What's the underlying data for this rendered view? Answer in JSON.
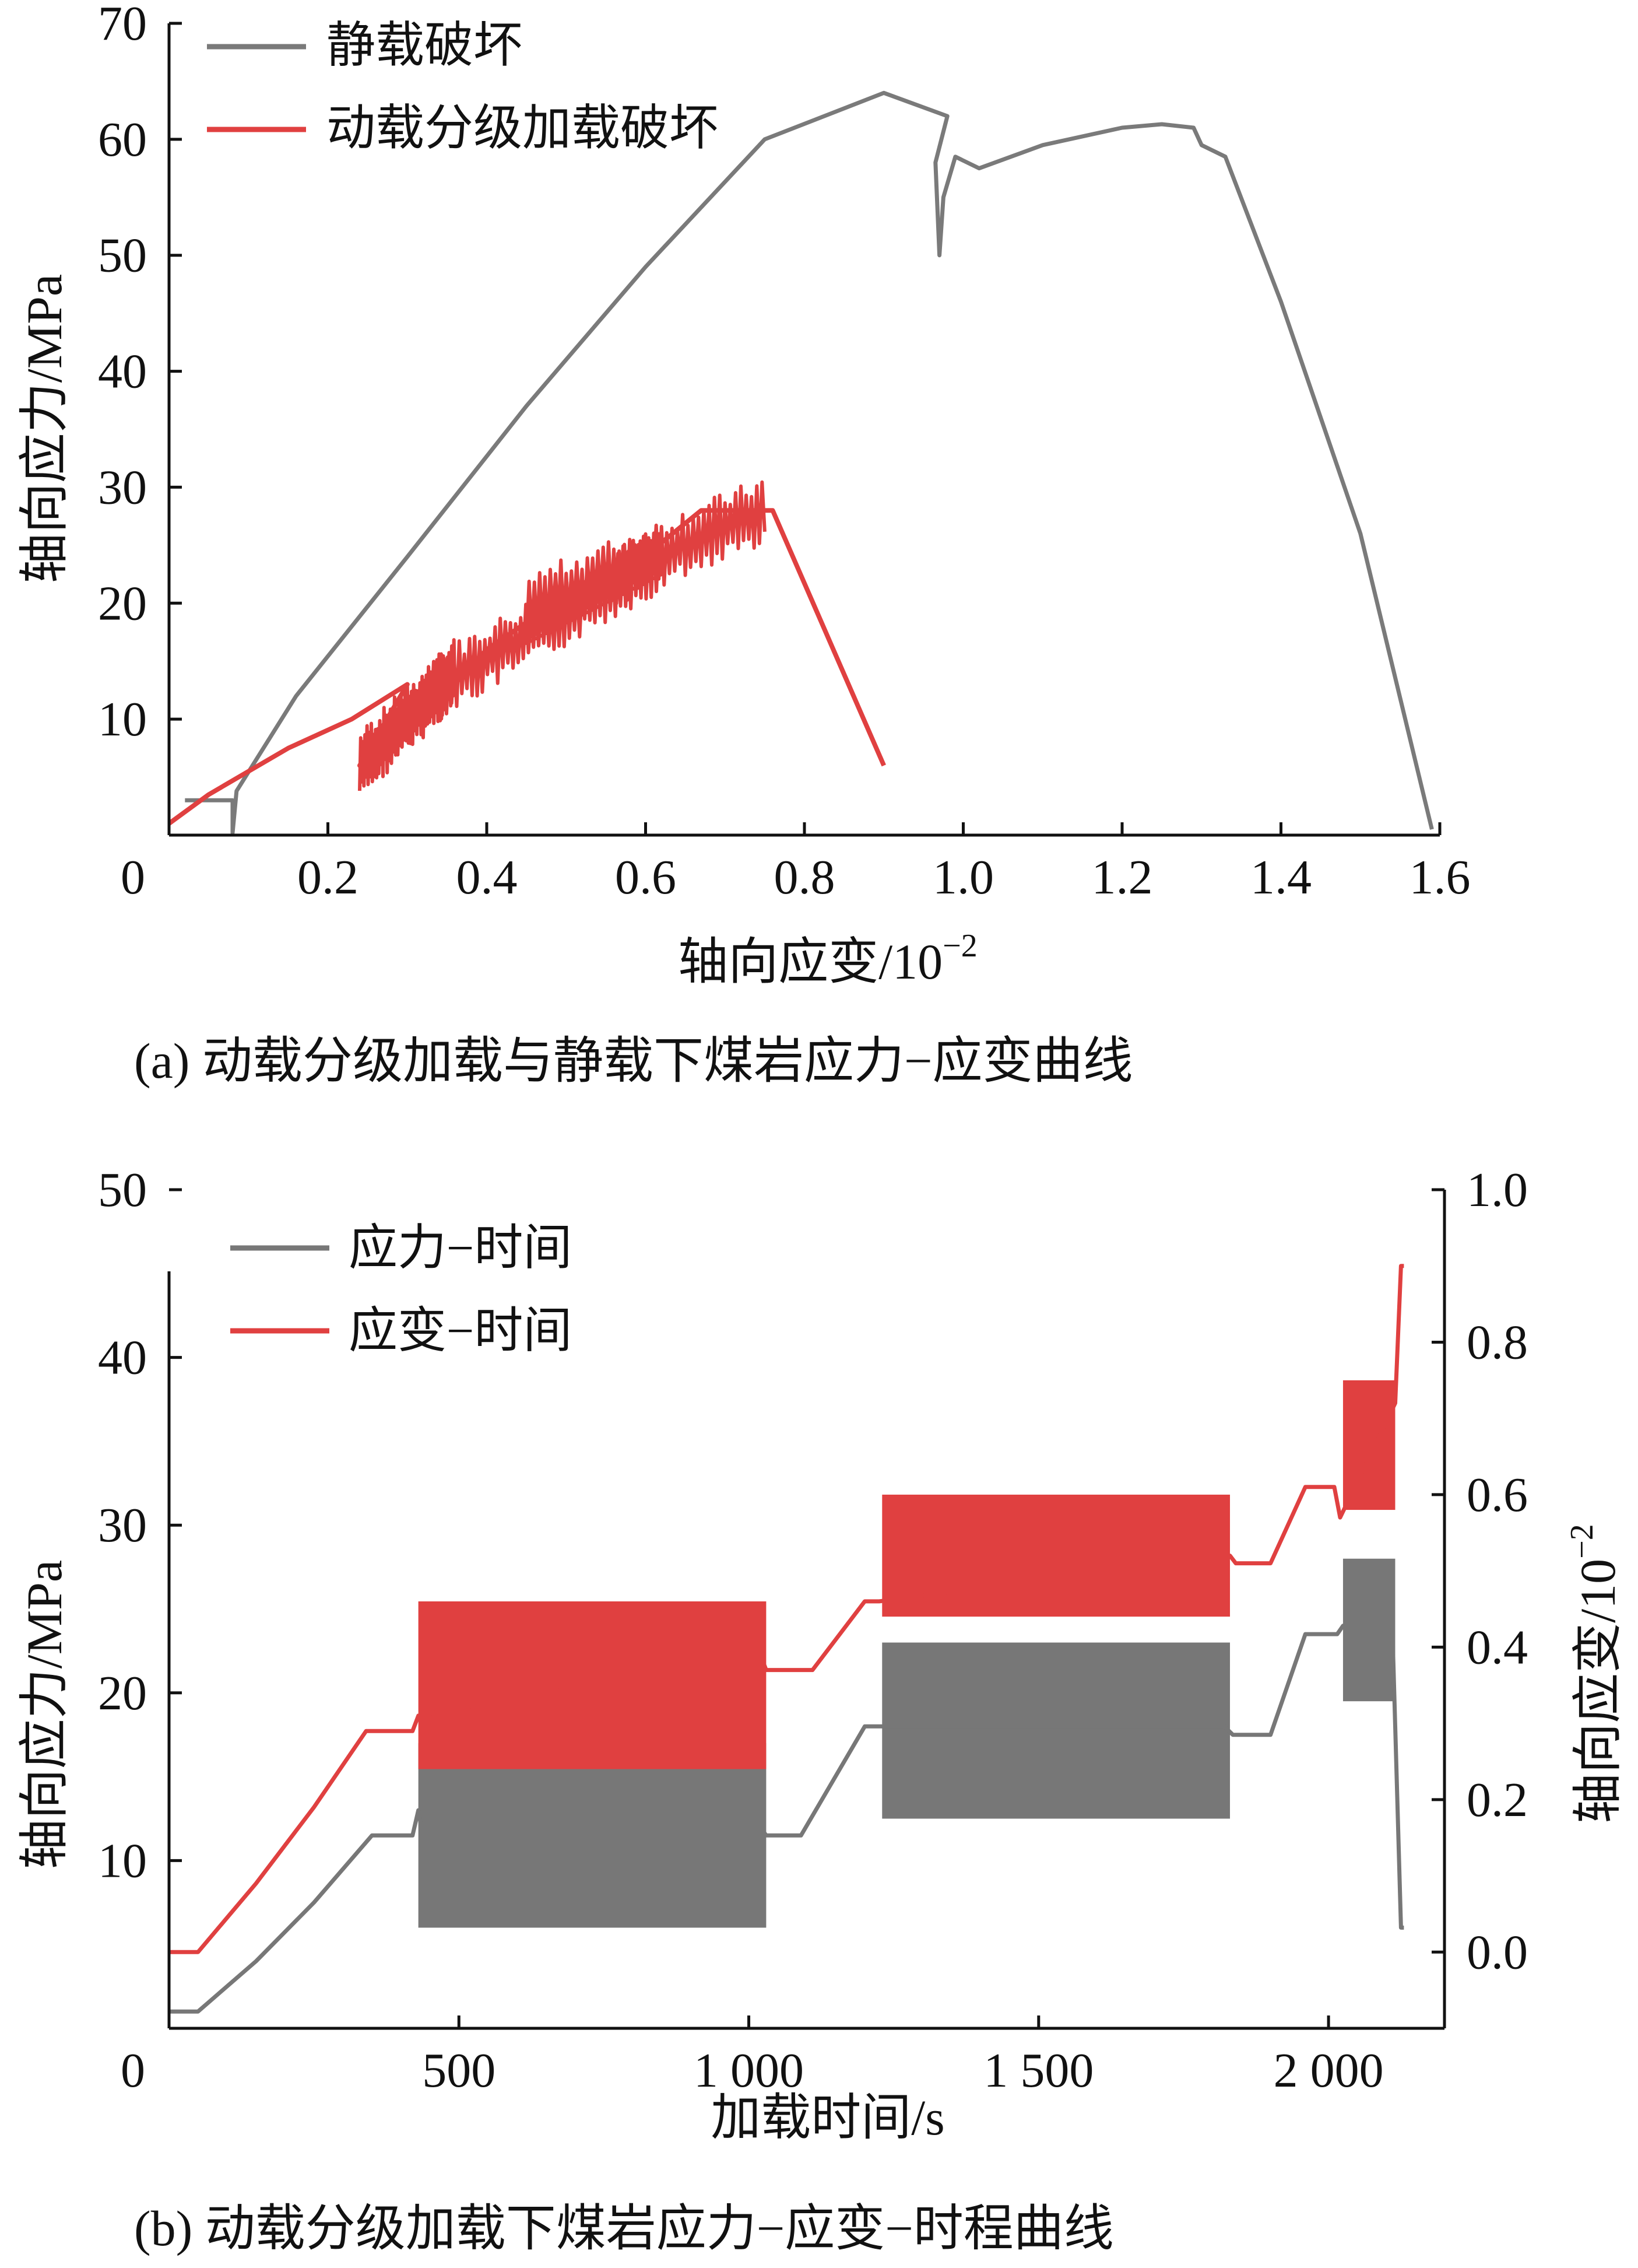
{
  "chart_data": [
    {
      "type": "line",
      "caption": "(a)  动载分级加载与静载下煤岩应力−应变曲线",
      "xlabel_main": "轴向应变/10",
      "xlabel_sup": "−2",
      "ylabel": "轴向应力/MPa",
      "xlim": [
        0,
        1.6
      ],
      "ylim": [
        0,
        70
      ],
      "xticks": [
        {
          "v": 0,
          "label": "0"
        },
        {
          "v": 0.2,
          "label": "0.2"
        },
        {
          "v": 0.4,
          "label": "0.4"
        },
        {
          "v": 0.6,
          "label": "0.6"
        },
        {
          "v": 0.8,
          "label": "0.8"
        },
        {
          "v": 1.0,
          "label": "1.0"
        },
        {
          "v": 1.2,
          "label": "1.2"
        },
        {
          "v": 1.4,
          "label": "1.4"
        },
        {
          "v": 1.6,
          "label": "1.6"
        }
      ],
      "yticks": [
        {
          "v": 10,
          "label": "10"
        },
        {
          "v": 20,
          "label": "20"
        },
        {
          "v": 30,
          "label": "30"
        },
        {
          "v": 40,
          "label": "40"
        },
        {
          "v": 50,
          "label": "50"
        },
        {
          "v": 60,
          "label": "60"
        },
        {
          "v": 70,
          "label": "70"
        }
      ],
      "legend": {
        "placement": "top-left"
      },
      "series": [
        {
          "name": "静载破坏",
          "color": "#7a7a7a",
          "x": [
            0.02,
            0.08,
            0.08,
            0.085,
            0.16,
            0.3,
            0.45,
            0.6,
            0.75,
            0.9,
            0.98,
            0.965,
            0.97,
            0.975,
            0.99,
            1.02,
            1.1,
            1.2,
            1.25,
            1.29,
            1.3,
            1.33,
            1.4,
            1.5,
            1.59
          ],
          "y": [
            3,
            3,
            0.2,
            3.8,
            12,
            24,
            37,
            49,
            60,
            64,
            62,
            58,
            50,
            55,
            58.5,
            57.5,
            59.5,
            61,
            61.3,
            61,
            59.5,
            58.5,
            46,
            26,
            0.5
          ]
        },
        {
          "name": "动载分级加载破坏",
          "color": "#e04040",
          "x": [
            0.0,
            0.05,
            0.15,
            0.23,
            0.3,
            0.24,
            0.36,
            0.29,
            0.4,
            0.55,
            0.62,
            0.49,
            0.67,
            0.76,
            0.9
          ],
          "y": [
            1,
            3.5,
            7.5,
            10,
            13,
            6,
            14,
            8,
            16,
            23,
            24,
            18,
            28,
            28,
            6
          ]
        }
      ]
    },
    {
      "type": "line",
      "caption": "(b)  动载分级加载下煤岩应力−应变−时程曲线",
      "xlabel": "加载时间/s",
      "ylabel_left": "轴向应力/MPa",
      "ylabel_right_main": "轴向应变/10",
      "ylabel_right_sup": "−2",
      "xlim": [
        0,
        2200
      ],
      "ylim_left": [
        0,
        50
      ],
      "ylim_right": [
        -0.1,
        1.0
      ],
      "xticks": [
        {
          "v": 0,
          "label": "0"
        },
        {
          "v": 500,
          "label": "500"
        },
        {
          "v": 1000,
          "label": "1 000"
        },
        {
          "v": 1500,
          "label": "1 500"
        },
        {
          "v": 2000,
          "label": "2 000"
        }
      ],
      "yticks_left": [
        {
          "v": 10,
          "label": "10"
        },
        {
          "v": 20,
          "label": "20"
        },
        {
          "v": 30,
          "label": "30"
        },
        {
          "v": 40,
          "label": "40"
        },
        {
          "v": 50,
          "label": "50"
        }
      ],
      "yticks_right": [
        {
          "v": 0.0,
          "label": "0.0"
        },
        {
          "v": 0.2,
          "label": "0.2"
        },
        {
          "v": 0.4,
          "label": "0.4"
        },
        {
          "v": 0.6,
          "label": "0.6"
        },
        {
          "v": 0.8,
          "label": "0.8"
        },
        {
          "v": 1.0,
          "label": "1.0"
        }
      ],
      "legend": {
        "placement": "top-left"
      },
      "series": [
        {
          "name": "应力−时间",
          "color": "#777777",
          "axis": "left",
          "t": [
            0,
            50,
            150,
            250,
            350,
            420,
            430,
            435,
            1020,
            1030,
            1090,
            1200,
            1230,
            1820,
            1835,
            1900,
            1960,
            2015,
            2025,
            2110,
            2115,
            2125,
            2130
          ],
          "v": [
            1,
            1,
            4,
            7.5,
            11.5,
            11.5,
            13,
            12,
            12,
            11.5,
            11.5,
            18,
            18,
            18,
            17.5,
            17.5,
            23.5,
            23.5,
            24,
            24,
            18,
            6,
            6
          ],
          "bands": [
            {
              "t0": 430,
              "t1": 1030,
              "min": 6,
              "max": 17
            },
            {
              "t0": 1230,
              "t1": 1830,
              "min": 12.5,
              "max": 23
            },
            {
              "t0": 2025,
              "t1": 2115,
              "min": 19.5,
              "max": 28
            }
          ]
        },
        {
          "name": "应变−时间",
          "color": "#e04040",
          "axis": "right",
          "t": [
            0,
            50,
            150,
            250,
            340,
            420,
            430,
            1020,
            1030,
            1110,
            1200,
            1225,
            1830,
            1840,
            1900,
            1960,
            2010,
            2020,
            2115,
            2125,
            2130
          ],
          "v": [
            0.0,
            0.0,
            0.09,
            0.19,
            0.29,
            0.29,
            0.31,
            0.39,
            0.37,
            0.37,
            0.46,
            0.46,
            0.52,
            0.51,
            0.51,
            0.61,
            0.61,
            0.57,
            0.72,
            0.9,
            0.9
          ],
          "bands": [
            {
              "t0": 430,
              "t1": 1030,
              "min": 0.24,
              "max": 0.46
            },
            {
              "t0": 1230,
              "t1": 1830,
              "min": 0.44,
              "max": 0.6
            },
            {
              "t0": 2025,
              "t1": 2115,
              "min": 0.58,
              "max": 0.75
            }
          ]
        }
      ]
    }
  ]
}
